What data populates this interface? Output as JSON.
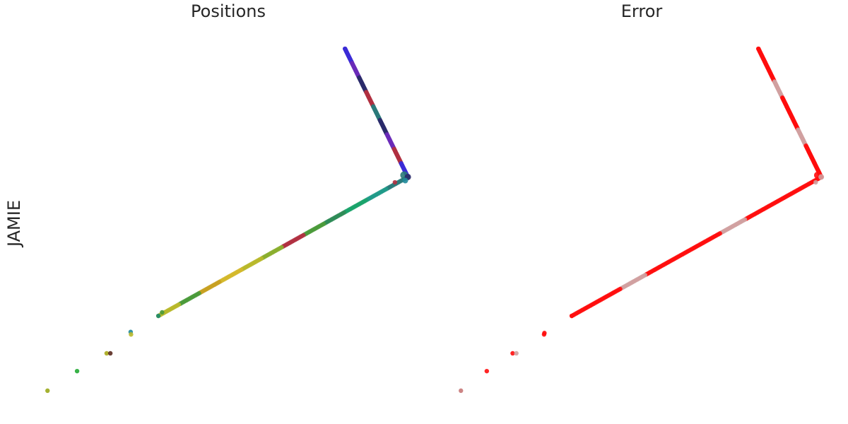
{
  "row_label": "JAMIE",
  "chart_data": [
    {
      "type": "scatter",
      "title": "Positions",
      "axes_visible": false,
      "grid": false,
      "xlim": [
        0,
        100
      ],
      "ylim": [
        0,
        100
      ],
      "colors": [
        "#3b2bd6",
        "#6a2bb8",
        "#2a2a6a",
        "#b03040",
        "#2a7a7a",
        "#1f9a88",
        "#1aa36a",
        "#2e8b57",
        "#4a9a3a",
        "#8aae2e",
        "#b8b82a",
        "#d4b82a",
        "#c8a020",
        "#1a8a6a",
        "#208a9a",
        "#9aa81a",
        "#22aa33",
        "#a8a81a",
        "#5a2a20"
      ],
      "segments": [
        {
          "from": [
            81.5,
            99.0
          ],
          "to": [
            98.5,
            63.0
          ],
          "colors": [
            0,
            1,
            2,
            3,
            4,
            2,
            1,
            3,
            0
          ]
        },
        {
          "from": [
            98.5,
            63.0
          ],
          "to": [
            31.0,
            24.0
          ],
          "colors": [
            4,
            5,
            6,
            7,
            8,
            3,
            9,
            10,
            11,
            12,
            8,
            10
          ]
        }
      ],
      "points": [
        {
          "x": 81.5,
          "y": 99.0,
          "c": 0
        },
        {
          "x": 97.5,
          "y": 63.5,
          "c": 4,
          "r": 5.5
        },
        {
          "x": 98.5,
          "y": 63.0,
          "c": 2,
          "r": 4.5
        },
        {
          "x": 97.8,
          "y": 62.0,
          "c": 14,
          "r": 4.0
        },
        {
          "x": 95.0,
          "y": 61.5,
          "c": 3
        },
        {
          "x": 31.0,
          "y": 24.0,
          "c": 13
        },
        {
          "x": 32.0,
          "y": 25.0,
          "c": 8
        },
        {
          "x": 23.5,
          "y": 19.5,
          "c": 14
        },
        {
          "x": 23.6,
          "y": 18.8,
          "c": 10
        },
        {
          "x": 17.0,
          "y": 13.5,
          "c": 17
        },
        {
          "x": 18.0,
          "y": 13.5,
          "c": 18
        },
        {
          "x": 9.0,
          "y": 8.5,
          "c": 16
        },
        {
          "x": 1.0,
          "y": 3.0,
          "c": 15
        }
      ]
    },
    {
      "type": "scatter",
      "title": "Error",
      "axes_visible": false,
      "grid": false,
      "xlim": [
        0,
        100
      ],
      "ylim": [
        0,
        100
      ],
      "colors": [
        "#ff0d0d",
        "#d0a0a0",
        "#c87878",
        "#e02020"
      ],
      "segments": [
        {
          "from": [
            81.5,
            99.0
          ],
          "to": [
            98.5,
            63.0
          ],
          "colors": [
            0,
            0,
            1,
            0,
            0,
            1,
            0,
            0
          ]
        },
        {
          "from": [
            98.5,
            63.0
          ],
          "to": [
            31.0,
            24.0
          ],
          "colors": [
            0,
            0,
            0,
            1,
            0,
            0,
            0,
            1,
            0,
            0
          ]
        }
      ],
      "points": [
        {
          "x": 81.5,
          "y": 99.0,
          "c": 0
        },
        {
          "x": 97.5,
          "y": 63.5,
          "c": 0,
          "r": 5.0
        },
        {
          "x": 98.5,
          "y": 63.0,
          "c": 1,
          "r": 4.0
        },
        {
          "x": 97.0,
          "y": 61.5,
          "c": 1
        },
        {
          "x": 31.0,
          "y": 24.0,
          "c": 0
        },
        {
          "x": 23.6,
          "y": 19.2,
          "c": 0
        },
        {
          "x": 23.5,
          "y": 18.8,
          "c": 0
        },
        {
          "x": 15.0,
          "y": 13.5,
          "c": 0
        },
        {
          "x": 16.0,
          "y": 13.5,
          "c": 1
        },
        {
          "x": 8.0,
          "y": 8.5,
          "c": 0
        },
        {
          "x": 1.0,
          "y": 3.0,
          "c": 2
        }
      ]
    }
  ]
}
